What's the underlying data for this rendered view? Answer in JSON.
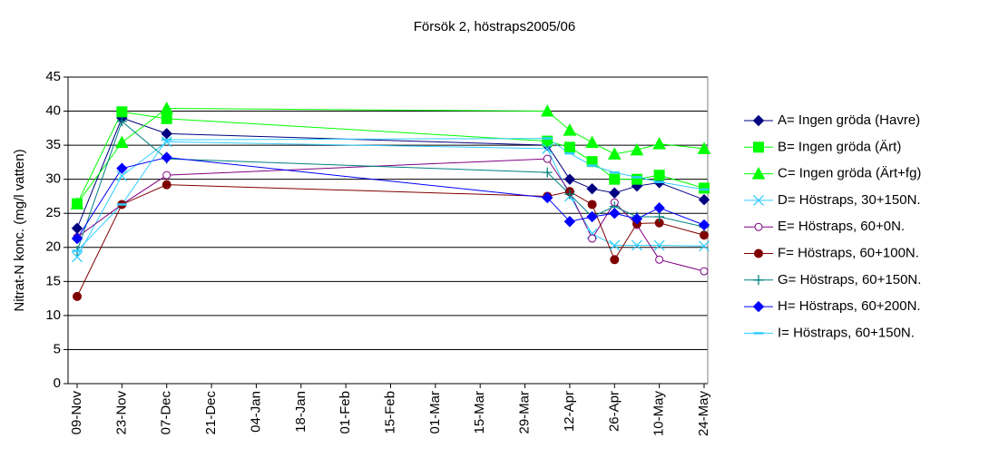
{
  "chart_data": {
    "type": "line",
    "title": "Försök 2, höstraps2005/06",
    "y_label": "Nitrat-N konc. (mg/l vatten)",
    "x": [
      "09-Nov",
      "23-Nov",
      "07-Dec",
      "05-Apr",
      "12-Apr",
      "19-Apr",
      "26-Apr",
      "03-May",
      "10-May",
      "24-May"
    ],
    "xlim": [
      "09-Nov",
      "24-May"
    ],
    "xticks": [
      "09-Nov",
      "23-Nov",
      "07-Dec",
      "21-Dec",
      "04-Jan",
      "18-Jan",
      "01-Feb",
      "15-Feb",
      "01-Mar",
      "15-Mar",
      "29-Mar",
      "12-Apr",
      "26-Apr",
      "10-May",
      "24-May"
    ],
    "ylim": [
      0,
      45
    ],
    "yticks": [
      0,
      5,
      10,
      15,
      20,
      25,
      30,
      35,
      40,
      45
    ],
    "grid": true,
    "legend": "right",
    "series": [
      {
        "name": "A= Ingen gröda (Havre)",
        "color": "#000080",
        "marker": "diamond",
        "values": [
          22.8,
          39.0,
          36.7,
          35.0,
          30.0,
          28.6,
          28.0,
          29.0,
          29.5,
          27.0
        ]
      },
      {
        "name": "B= Ingen gröda (Ärt)",
        "color": "#00ff00",
        "marker": "square",
        "values": [
          26.4,
          39.9,
          38.9,
          35.6,
          34.7,
          32.6,
          30.0,
          30.0,
          30.6,
          28.7
        ]
      },
      {
        "name": "C= Ingen gröda (Ärt+fg)",
        "color": "#00ff00",
        "marker": "triangle",
        "values": [
          26.4,
          35.4,
          40.4,
          40.0,
          37.2,
          35.4,
          33.7,
          34.3,
          35.2,
          34.5
        ]
      },
      {
        "name": "D= Höstraps, 30+150N.",
        "color": "#33ccff",
        "marker": "x",
        "values": [
          18.6,
          30.5,
          35.5,
          34.5,
          27.5,
          22.0,
          20.3,
          20.3,
          20.3,
          20.2
        ]
      },
      {
        "name": "E= Höstraps, 60+0N.",
        "color": "#800080",
        "marker": "open-circle",
        "values": [
          21.5,
          26.3,
          30.6,
          33.0,
          28.1,
          21.3,
          26.6,
          23.3,
          18.2,
          16.5
        ]
      },
      {
        "name": "F= Höstraps, 60+100N.",
        "color": "#800000",
        "marker": "circle",
        "values": [
          12.8,
          26.3,
          29.2,
          27.5,
          28.2,
          26.3,
          18.2,
          23.5,
          23.6,
          21.8
        ]
      },
      {
        "name": "G= Höstraps, 60+150N.",
        "color": "#008080",
        "marker": "plus",
        "values": [
          19.5,
          38.5,
          33.0,
          31.0,
          27.8,
          24.5,
          26.0,
          24.5,
          24.5,
          23.0
        ]
      },
      {
        "name": "H= Höstraps, 60+200N.",
        "color": "#0000ff",
        "marker": "diamond",
        "values": [
          21.3,
          31.6,
          33.2,
          27.3,
          23.8,
          24.5,
          25.0,
          24.2,
          25.8,
          23.3
        ]
      },
      {
        "name": "I= Höstraps, 60+150N.",
        "color": "#33ccff",
        "marker": "dash",
        "values": [
          19.5,
          26.3,
          35.8,
          36.0,
          33.8,
          32.0,
          31.0,
          30.3,
          29.6,
          28.5
        ]
      }
    ]
  }
}
